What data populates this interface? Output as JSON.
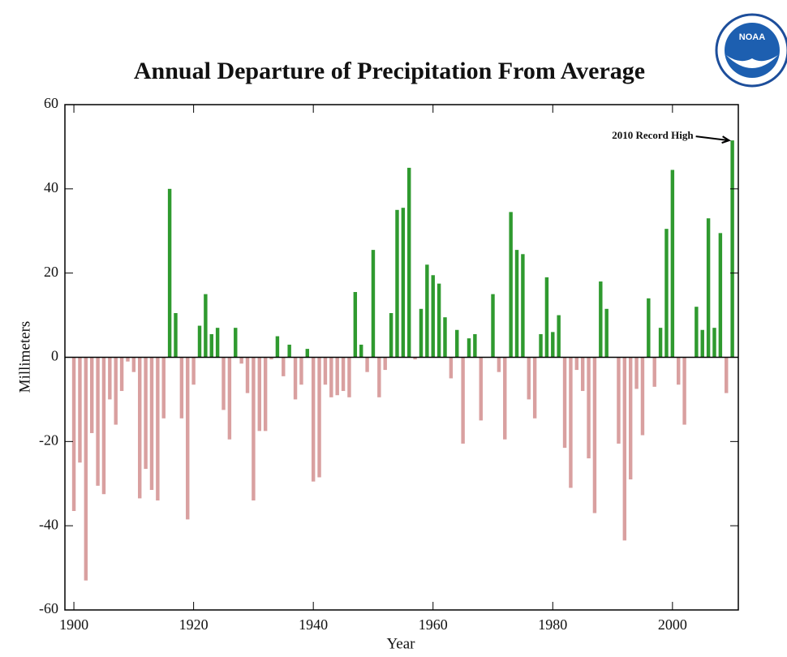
{
  "chart_data": {
    "type": "bar",
    "title": "Annual Departure of Precipitation From Average",
    "x_label": "Year",
    "y_label": "Millimeters",
    "annotation": "2010 Record High",
    "logo_text": "NOAA",
    "positive_color": "#2f9a2f",
    "negative_color": "#d9a0a0",
    "xlim": [
      1898.5,
      2011
    ],
    "xticks": [
      1900,
      1920,
      1940,
      1960,
      1980,
      2000
    ],
    "ylim": [
      -60,
      60
    ],
    "yticks": [
      -60,
      -40,
      -20,
      0,
      20,
      40,
      60
    ],
    "x": [
      1900,
      1901,
      1902,
      1903,
      1904,
      1905,
      1906,
      1907,
      1908,
      1909,
      1910,
      1911,
      1912,
      1913,
      1914,
      1915,
      1916,
      1917,
      1918,
      1919,
      1920,
      1921,
      1922,
      1923,
      1924,
      1925,
      1926,
      1927,
      1928,
      1929,
      1930,
      1931,
      1932,
      1933,
      1934,
      1935,
      1936,
      1937,
      1938,
      1939,
      1940,
      1941,
      1942,
      1943,
      1944,
      1945,
      1946,
      1947,
      1948,
      1949,
      1950,
      1951,
      1952,
      1953,
      1954,
      1955,
      1956,
      1957,
      1958,
      1959,
      1960,
      1961,
      1962,
      1963,
      1964,
      1965,
      1966,
      1967,
      1968,
      1969,
      1970,
      1971,
      1972,
      1973,
      1974,
      1975,
      1976,
      1977,
      1978,
      1979,
      1980,
      1981,
      1982,
      1983,
      1984,
      1985,
      1986,
      1987,
      1988,
      1989,
      1990,
      1991,
      1992,
      1993,
      1994,
      1995,
      1996,
      1997,
      1998,
      1999,
      2000,
      2001,
      2002,
      2003,
      2004,
      2005,
      2006,
      2007,
      2008,
      2009,
      2010
    ],
    "values": [
      -36.5,
      -25,
      -53,
      -18,
      -30.5,
      -32.5,
      -10,
      -16,
      -8,
      -1,
      -3.5,
      -33.5,
      -26.5,
      -31.5,
      -34,
      -14.5,
      40,
      10.5,
      -14.5,
      -38.5,
      -6.5,
      7.5,
      15,
      5.5,
      7,
      -12.5,
      -19.5,
      7,
      -1.5,
      -8.5,
      -34,
      -17.5,
      -17.5,
      -0.5,
      5,
      -4.5,
      3,
      -10,
      -6.5,
      2,
      -29.5,
      -28.5,
      -6.5,
      -9.5,
      -9,
      -8,
      -9.5,
      15.5,
      3,
      -3.5,
      25.5,
      -9.5,
      -3,
      10.5,
      35,
      35.5,
      45,
      -0.5,
      11.5,
      22,
      19.5,
      17.5,
      9.5,
      -5,
      6.5,
      -20.5,
      4.5,
      5.5,
      -15,
      0,
      15,
      -3.5,
      -19.5,
      34.5,
      25.5,
      24.5,
      -10,
      -14.5,
      5.5,
      19,
      6,
      10,
      -21.5,
      -31,
      -3,
      -8,
      -24,
      -37,
      18,
      11.5,
      0,
      -20.5,
      -43.5,
      -29,
      -7.5,
      -18.5,
      14,
      -7,
      7,
      30.5,
      44.5,
      -6.5,
      -16,
      0,
      12,
      6.5,
      33,
      7,
      29.5,
      -8.5,
      51.5
    ]
  }
}
